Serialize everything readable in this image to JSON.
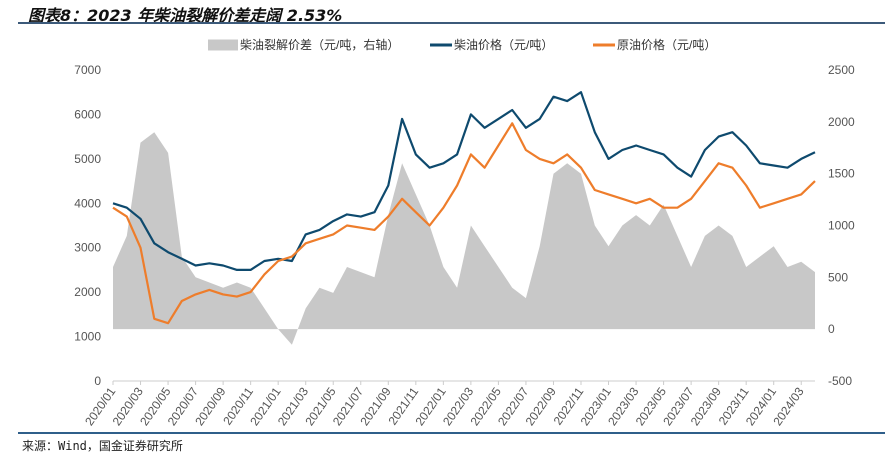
{
  "header": {
    "title": "图表8：2023 年柴油裂解价差走阔 2.53%"
  },
  "footer": {
    "source": "来源：Wind，国金证券研究所"
  },
  "chart_data": {
    "type": "line",
    "title": "2023 年柴油裂解价差走阔 2.53%",
    "legend": [
      "柴油裂解价差（元/吨，右轴）",
      "柴油价格（元/吨）",
      "原油价格（元/吨）"
    ],
    "legend_position": "top",
    "colors": {
      "spread": "#c8c8c8",
      "diesel": "#0e4a6e",
      "crude": "#ee7d2b"
    },
    "y_left": {
      "min": 0,
      "max": 7000,
      "ticks": [
        0,
        1000,
        2000,
        3000,
        4000,
        5000,
        6000,
        7000
      ]
    },
    "y_right": {
      "min": -500,
      "max": 2500,
      "ticks": [
        -500,
        0,
        500,
        1000,
        1500,
        2000,
        2500
      ]
    },
    "x_tick_labels": [
      "2020/01",
      "2020/03",
      "2020/05",
      "2020/07",
      "2020/09",
      "2020/11",
      "2021/01",
      "2021/03",
      "2021/05",
      "2021/07",
      "2021/09",
      "2021/11",
      "2022/01",
      "2022/03",
      "2022/05",
      "2022/07",
      "2022/09",
      "2022/11",
      "2023/01",
      "2023/03",
      "2023/05",
      "2023/07",
      "2023/09",
      "2023/11",
      "2024/01",
      "2024/03"
    ],
    "series": [
      {
        "name": "柴油裂解价差（元/吨，右轴）",
        "type": "area",
        "axis": "right",
        "values": [
          600,
          900,
          1800,
          1900,
          1700,
          700,
          500,
          450,
          400,
          450,
          400,
          200,
          0,
          -150,
          200,
          400,
          350,
          600,
          550,
          500,
          1100,
          1600,
          1300,
          1000,
          600,
          400,
          1000,
          800,
          600,
          400,
          300,
          800,
          1500,
          1600,
          1500,
          1000,
          800,
          1000,
          1100,
          1000,
          1200,
          900,
          600,
          900,
          1000,
          900,
          600,
          700,
          800,
          600,
          650,
          550
        ]
      },
      {
        "name": "柴油价格（元/吨）",
        "type": "line",
        "axis": "left",
        "values": [
          4000,
          3900,
          3650,
          3100,
          2900,
          2750,
          2600,
          2650,
          2600,
          2500,
          2500,
          2700,
          2750,
          2700,
          3300,
          3400,
          3600,
          3750,
          3700,
          3800,
          4400,
          5900,
          5100,
          4800,
          4900,
          5100,
          6000,
          5700,
          5900,
          6100,
          5700,
          5900,
          6400,
          6300,
          6500,
          5600,
          5000,
          5200,
          5300,
          5200,
          5100,
          4800,
          4600,
          5200,
          5500,
          5600,
          5300,
          4900,
          4850,
          4800,
          5000,
          5150
        ]
      },
      {
        "name": "原油价格（元/吨）",
        "type": "line",
        "axis": "left",
        "values": [
          3900,
          3700,
          3000,
          1400,
          1300,
          1800,
          1950,
          2050,
          1950,
          1900,
          2000,
          2400,
          2700,
          2800,
          3100,
          3200,
          3300,
          3500,
          3450,
          3400,
          3700,
          4100,
          3800,
          3500,
          3900,
          4400,
          5100,
          4800,
          5300,
          5800,
          5200,
          5000,
          4900,
          5100,
          4800,
          4300,
          4200,
          4100,
          4000,
          4100,
          3900,
          3900,
          4100,
          4500,
          4900,
          4800,
          4400,
          3900,
          4000,
          4100,
          4200,
          4500
        ]
      }
    ]
  }
}
